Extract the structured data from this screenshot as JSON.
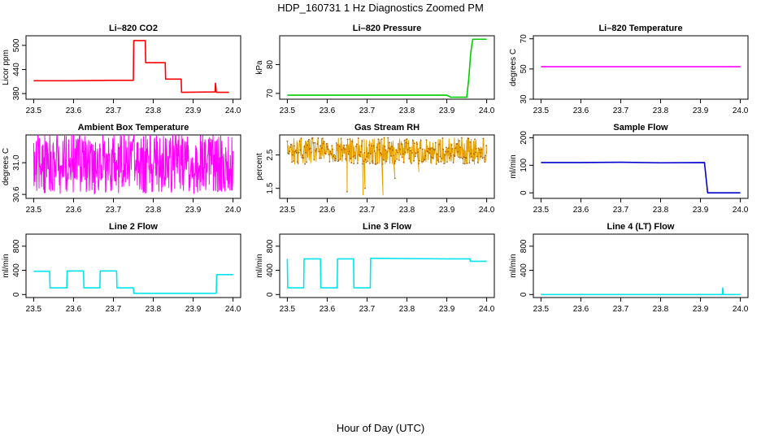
{
  "figure": {
    "title": "HDP_160731  1 Hz Diagnostics Zoomed PM",
    "xlabel": "Hour of Day (UTC)"
  },
  "chart_data": [
    {
      "type": "line",
      "title": "Li–820 CO2",
      "ylabel": "Licor ppm",
      "color": "#ff0000",
      "xlim": [
        23.5,
        24.0
      ],
      "ylim": [
        366,
        524
      ],
      "x_ticks": [
        "23.5",
        "23.6",
        "23.7",
        "23.8",
        "23.9",
        "24.0"
      ],
      "y_ticks": [
        "380",
        "440",
        "500"
      ],
      "x": [
        23.5,
        23.6,
        23.7,
        23.75,
        23.751,
        23.78,
        23.781,
        23.83,
        23.831,
        23.87,
        23.871,
        23.955,
        23.956,
        23.958,
        23.959,
        23.99
      ],
      "y": [
        412,
        412,
        413,
        413,
        512,
        512,
        457,
        457,
        416,
        416,
        383,
        384,
        406,
        384,
        383,
        383
      ]
    },
    {
      "type": "line",
      "title": "Li–820 Pressure",
      "ylabel": "kPa",
      "color": "#00cc00",
      "xlim": [
        23.5,
        24.0
      ],
      "ylim": [
        68,
        90
      ],
      "x_ticks": [
        "23.5",
        "23.6",
        "23.7",
        "23.8",
        "23.9",
        "24.0"
      ],
      "y_ticks": [
        "70",
        "80"
      ],
      "x": [
        23.5,
        23.9,
        23.91,
        23.95,
        23.955,
        23.96,
        23.965,
        23.97,
        24.0
      ],
      "y": [
        69.4,
        69.4,
        68.7,
        68.7,
        75,
        84,
        88.8,
        88.8,
        88.8
      ]
    },
    {
      "type": "line",
      "title": "Li–820 Temperature",
      "ylabel": "degrees C",
      "color": "#ff00ff",
      "xlim": [
        23.5,
        24.0
      ],
      "ylim": [
        30,
        72
      ],
      "x_ticks": [
        "23.5",
        "23.6",
        "23.7",
        "23.8",
        "23.9",
        "24.0"
      ],
      "y_ticks": [
        "30",
        "50",
        "70"
      ],
      "x": [
        23.5,
        24.0
      ],
      "y": [
        51.5,
        51.5
      ]
    },
    {
      "type": "line",
      "title": "Ambient Box Temperature",
      "ylabel": "degrees C",
      "color": "#ff00ff",
      "xlim": [
        23.5,
        24.0
      ],
      "ylim": [
        30.55,
        31.35
      ],
      "x_ticks": [
        "23.5",
        "23.6",
        "23.7",
        "23.8",
        "23.9",
        "24.0"
      ],
      "y_ticks": [
        "30.6",
        "31.0"
      ],
      "noise": {
        "x_range": [
          23.5,
          24.0
        ],
        "center": 31.0,
        "spread": 0.38,
        "extreme_low": 30.6,
        "extreme_high": 31.3
      }
    },
    {
      "type": "line",
      "title": "Gas Stream RH",
      "ylabel": "percent",
      "color": "#e6a000",
      "xlim": [
        23.5,
        24.0
      ],
      "ylim": [
        1.2,
        3.1
      ],
      "x_ticks": [
        "23.5",
        "23.6",
        "23.7",
        "23.8",
        "23.9",
        "24.0"
      ],
      "y_ticks": [
        "1.5",
        "2.5"
      ],
      "noise": {
        "x_range": [
          23.5,
          24.0
        ],
        "center": 2.62,
        "spread": 0.4
      },
      "dips": [
        {
          "x": 23.65,
          "y": 1.4
        },
        {
          "x": 23.69,
          "y": 1.3
        },
        {
          "x": 23.695,
          "y": 1.5
        },
        {
          "x": 23.74,
          "y": 1.3
        },
        {
          "x": 23.77,
          "y": 1.8
        },
        {
          "x": 23.83,
          "y": 2.0
        }
      ]
    },
    {
      "type": "line",
      "title": "Sample Flow",
      "ylabel": "ml/min",
      "color": "#0000cc",
      "xlim": [
        23.5,
        24.0
      ],
      "ylim": [
        -20,
        210
      ],
      "x_ticks": [
        "23.5",
        "23.6",
        "23.7",
        "23.8",
        "23.9",
        "24.0"
      ],
      "y_ticks": [
        "0",
        "100",
        "200"
      ],
      "x": [
        23.5,
        23.6,
        23.7,
        23.8,
        23.91,
        23.918,
        23.93,
        24.0
      ],
      "y": [
        110,
        110,
        111,
        109,
        110,
        0,
        0,
        0
      ]
    },
    {
      "type": "line",
      "title": "Line 2 Flow",
      "ylabel": "ml/min",
      "color": "#00e5ee",
      "xlim": [
        23.5,
        24.0
      ],
      "ylim": [
        -50,
        1000
      ],
      "x_ticks": [
        "23.5",
        "23.6",
        "23.7",
        "23.8",
        "23.9",
        "24.0"
      ],
      "y_ticks": [
        "0",
        "400",
        "800"
      ],
      "x": [
        23.5,
        23.54,
        23.541,
        23.583,
        23.584,
        23.625,
        23.626,
        23.666,
        23.667,
        23.708,
        23.709,
        23.75,
        23.751,
        23.958,
        23.959,
        24.0
      ],
      "y": [
        385,
        385,
        110,
        110,
        390,
        390,
        110,
        110,
        390,
        390,
        110,
        110,
        20,
        20,
        330,
        330
      ]
    },
    {
      "type": "line",
      "title": "Line 3 Flow",
      "ylabel": "ml/min",
      "color": "#00e5ee",
      "xlim": [
        23.5,
        24.0
      ],
      "ylim": [
        -50,
        1000
      ],
      "x_ticks": [
        "23.5",
        "23.6",
        "23.7",
        "23.8",
        "23.9",
        "24.0"
      ],
      "y_ticks": [
        "0",
        "400",
        "800"
      ],
      "x": [
        23.5,
        23.501,
        23.541,
        23.542,
        23.583,
        23.584,
        23.625,
        23.626,
        23.666,
        23.667,
        23.708,
        23.709,
        23.9,
        23.958,
        23.959,
        24.0
      ],
      "y": [
        590,
        110,
        110,
        590,
        590,
        110,
        110,
        590,
        590,
        110,
        110,
        600,
        590,
        590,
        550,
        550
      ]
    },
    {
      "type": "line",
      "title": "Line 4 (LT) Flow",
      "ylabel": "ml/min",
      "color": "#00e5ee",
      "xlim": [
        23.5,
        24.0
      ],
      "ylim": [
        -50,
        1000
      ],
      "x_ticks": [
        "23.5",
        "23.6",
        "23.7",
        "23.8",
        "23.9",
        "24.0"
      ],
      "y_ticks": [
        "0",
        "400",
        "800"
      ],
      "x": [
        23.5,
        23.955,
        23.956,
        23.957,
        23.958,
        24.0
      ],
      "y": [
        0,
        0,
        110,
        0,
        0,
        0
      ]
    }
  ]
}
